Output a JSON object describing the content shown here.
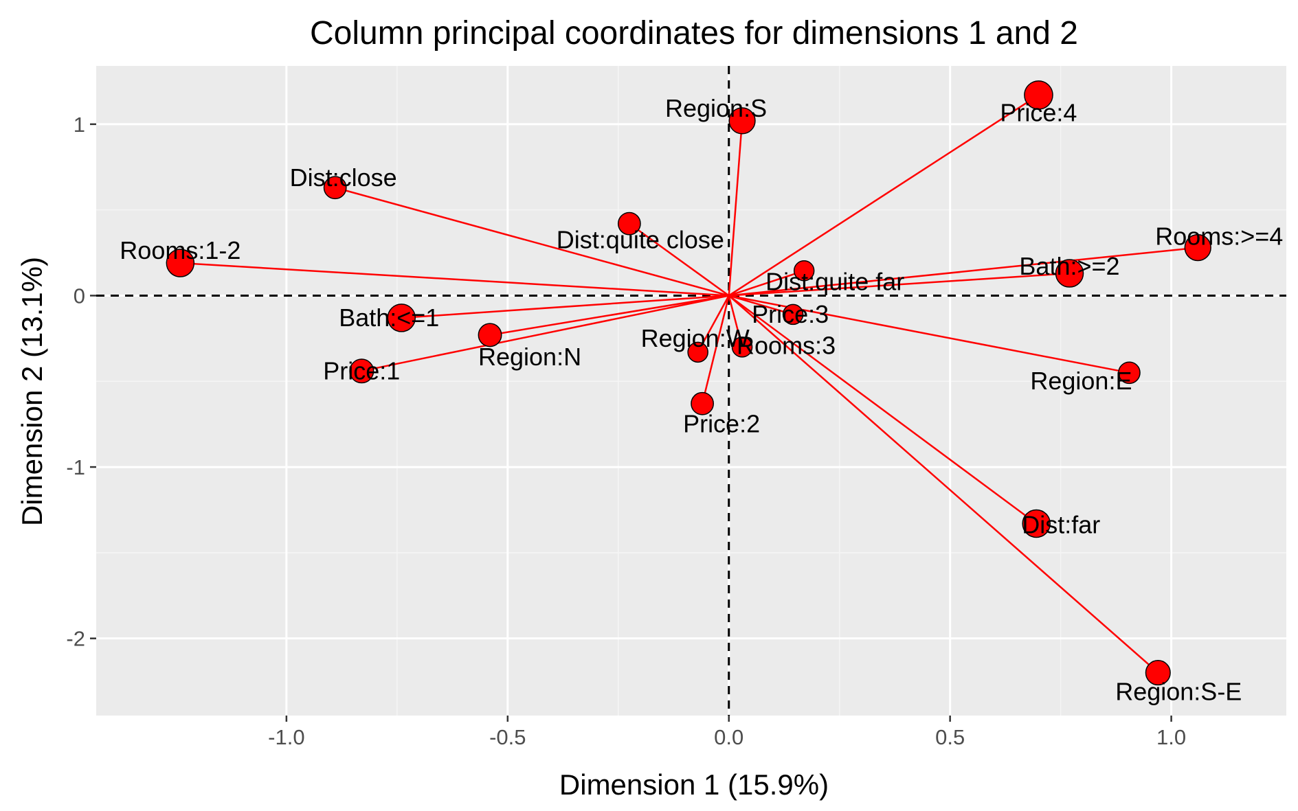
{
  "chart_data": {
    "type": "scatter",
    "title": "Column principal coordinates for dimensions 1 and 2",
    "xlabel": "Dimension 1 (15.9%)",
    "ylabel": "Dimension 2 (13.1%)",
    "xlim": [
      -1.43,
      1.26
    ],
    "ylim": [
      -2.45,
      1.34
    ],
    "xticks": [
      -1.0,
      -0.5,
      0.0,
      0.5,
      1.0
    ],
    "xtick_labels": [
      "-1.0",
      "-0.5",
      "0.0",
      "0.5",
      "1.0"
    ],
    "yticks": [
      -2,
      -1,
      0,
      1
    ],
    "ytick_labels": [
      "-2",
      "-1",
      "0",
      "1"
    ],
    "grid": true,
    "reference_lines": {
      "x": 0,
      "y": 0,
      "style": "dashed"
    },
    "vectors_from_origin": true,
    "colors": {
      "point": "#ff0000",
      "vector": "#ff0000",
      "panel": "#ebebeb",
      "grid": "#ffffff"
    },
    "points": [
      {
        "label": "Rooms:1-2",
        "x": -1.24,
        "y": 0.19,
        "size": 1.0
      },
      {
        "label": "Rooms:3",
        "x": 0.03,
        "y": -0.3,
        "size": 0.5
      },
      {
        "label": "Rooms:>=4",
        "x": 1.06,
        "y": 0.28,
        "size": 0.9
      },
      {
        "label": "Bath:<=1",
        "x": -0.74,
        "y": -0.13,
        "size": 1.0
      },
      {
        "label": "Bath:>=2",
        "x": 0.77,
        "y": 0.13,
        "size": 1.0
      },
      {
        "label": "Price:1",
        "x": -0.83,
        "y": -0.44,
        "size": 0.75
      },
      {
        "label": "Price:2",
        "x": -0.06,
        "y": -0.63,
        "size": 0.65
      },
      {
        "label": "Price:3",
        "x": 0.145,
        "y": -0.11,
        "size": 0.5
      },
      {
        "label": "Price:4",
        "x": 0.7,
        "y": 1.17,
        "size": 1.05
      },
      {
        "label": "Region:N",
        "x": -0.54,
        "y": -0.23,
        "size": 0.7
      },
      {
        "label": "Region:S",
        "x": 0.03,
        "y": 1.02,
        "size": 0.9
      },
      {
        "label": "Region:E",
        "x": 0.905,
        "y": -0.45,
        "size": 0.6
      },
      {
        "label": "Region:W",
        "x": -0.07,
        "y": -0.33,
        "size": 0.5
      },
      {
        "label": "Region:S-E",
        "x": 0.97,
        "y": -2.2,
        "size": 0.8
      },
      {
        "label": "Dist:close",
        "x": -0.89,
        "y": 0.63,
        "size": 0.65
      },
      {
        "label": "Dist:quite close",
        "x": -0.225,
        "y": 0.42,
        "size": 0.65
      },
      {
        "label": "Dist:quite far",
        "x": 0.17,
        "y": 0.145,
        "size": 0.5
      },
      {
        "label": "Dist:far",
        "x": 0.695,
        "y": -1.33,
        "size": 1.0
      }
    ]
  }
}
